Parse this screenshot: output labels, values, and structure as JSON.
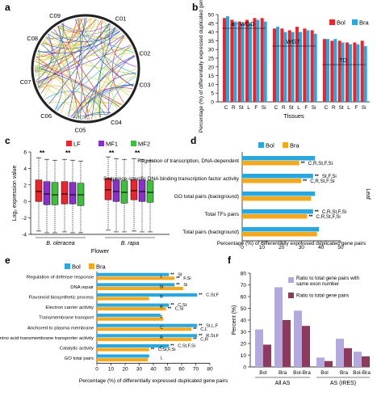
{
  "figure": {
    "panels": [
      {
        "id": "a",
        "letter": "a"
      },
      {
        "id": "b",
        "letter": "b"
      },
      {
        "id": "c",
        "letter": "c"
      },
      {
        "id": "d",
        "letter": "d"
      },
      {
        "id": "e",
        "letter": "e"
      },
      {
        "id": "f",
        "letter": "f"
      }
    ]
  },
  "colors": {
    "bol_red": "#e8262d",
    "bra_blue": "#29a8e0",
    "orange": "#f6a81c",
    "lf_red": "#e8262d",
    "mf1_purple": "#8b2fc9",
    "mf2_green": "#3fbf3f",
    "f_light": "#b3a9dc",
    "f_dark": "#8c3a5e",
    "sig": "#000000"
  },
  "circos": {
    "chromosomes": [
      "C01",
      "C02",
      "C03",
      "C04",
      "C05",
      "C06",
      "C07",
      "C08",
      "C09"
    ]
  },
  "chart_data": [
    {
      "id": "b",
      "type": "bar",
      "categories": [
        "C",
        "R",
        "St",
        "L",
        "F",
        "Si",
        "C",
        "R",
        "St",
        "L",
        "F",
        "Si",
        "C",
        "R",
        "St",
        "L",
        "F",
        "Si"
      ],
      "groups": [
        {
          "label": "a - WGD",
          "categories": [
            "C",
            "R",
            "St",
            "L",
            "F",
            "Si"
          ]
        },
        {
          "label": "WGT",
          "categories": [
            "C",
            "R",
            "St",
            "L",
            "F",
            "Si"
          ]
        },
        {
          "label": "TD",
          "categories": [
            "C",
            "R",
            "St",
            "L",
            "F",
            "Si"
          ]
        }
      ],
      "series": [
        {
          "name": "Bol",
          "color": "#e8262d",
          "values": [
            48,
            47,
            46,
            47,
            48,
            48,
            42,
            42,
            41,
            43,
            42,
            41,
            36,
            35,
            35,
            34,
            34,
            35
          ]
        },
        {
          "name": "Bra",
          "color": "#29a8e0",
          "values": [
            49,
            46,
            45,
            45,
            47,
            46,
            43,
            40,
            40,
            40,
            41,
            39,
            36,
            36,
            34,
            33,
            33,
            32
          ]
        }
      ],
      "xlabel": "Tissues",
      "ylabel": "Percentage (%) of differentially expressed duplicated gene pairs",
      "ylim": [
        0,
        50
      ],
      "yticks": [
        0,
        5,
        10,
        15,
        20,
        25,
        30,
        35,
        40,
        45,
        50
      ],
      "legend": "top-right"
    },
    {
      "id": "c",
      "type": "box",
      "series": [
        {
          "name": "LF",
          "color": "#e8262d"
        },
        {
          "name": "MF1",
          "color": "#8b2fc9"
        },
        {
          "name": "MF2",
          "color": "#3fbf3f"
        }
      ],
      "boxes": [
        {
          "q1": 0.0,
          "med": 1.2,
          "q3": 2.6,
          "lo": -3.6,
          "hi": 5.3
        },
        {
          "q1": -0.4,
          "med": 0.9,
          "q3": 2.4,
          "lo": -3.8,
          "hi": 5.1
        },
        {
          "q1": -0.4,
          "med": 0.8,
          "q3": 2.3,
          "lo": -3.8,
          "hi": 5.0
        },
        {
          "q1": -0.3,
          "med": 0.9,
          "q3": 2.4,
          "lo": -3.7,
          "hi": 5.1
        },
        {
          "q1": -0.3,
          "med": 0.8,
          "q3": 2.3,
          "lo": -3.8,
          "hi": 5.0
        },
        {
          "q1": -0.5,
          "med": 0.8,
          "q3": 2.2,
          "lo": -3.8,
          "hi": 4.9
        },
        {
          "q1": 0.2,
          "med": 1.4,
          "q3": 2.8,
          "lo": -3.5,
          "hi": 5.4
        },
        {
          "q1": 0.0,
          "med": 1.2,
          "q3": 2.6,
          "lo": -3.7,
          "hi": 5.2
        },
        {
          "q1": -0.2,
          "med": 1.1,
          "q3": 2.5,
          "lo": -3.7,
          "hi": 5.1
        },
        {
          "q1": 0.2,
          "med": 1.3,
          "q3": 2.6,
          "lo": -3.6,
          "hi": 5.2
        },
        {
          "q1": 0.0,
          "med": 1.2,
          "q3": 2.6,
          "lo": -3.7,
          "hi": 5.1
        },
        {
          "q1": -0.1,
          "med": 1.1,
          "q3": 2.5,
          "lo": -3.7,
          "hi": 5.0
        }
      ],
      "sig": [
        {
          "after_box": 0,
          "label": "**"
        },
        {
          "after_box": 3,
          "label": "**"
        },
        {
          "after_box": 6,
          "label": "**"
        },
        {
          "after_box": 9,
          "label": "**"
        }
      ],
      "groups": [
        {
          "label": "B. oleracea",
          "start": 0,
          "end": 5
        },
        {
          "label": "B. rapa",
          "start": 6,
          "end": 11
        }
      ],
      "xlabel": "Flower",
      "ylabel": "Log₂ expression value",
      "ylim": [
        -4,
        6
      ],
      "yticks": [
        -4,
        -2,
        0,
        2,
        4,
        6
      ],
      "legend": "top"
    },
    {
      "id": "d",
      "type": "bar",
      "orientation": "horizontal",
      "categories": [
        "Regulation of transcription, DNA-dependent",
        "Sequence-specific DNA binding transcription factor activity",
        "GO total pairs (background)",
        "Total TFs pairs",
        "Total pairs (background)"
      ],
      "series": [
        {
          "name": "Bol",
          "color": "#29a8e0",
          "values": [
            37,
            36,
            37,
            36,
            39
          ]
        },
        {
          "name": "Bra",
          "color": "#f6a81c",
          "values": [
            29,
            30,
            35,
            33,
            38
          ]
        }
      ],
      "annotations": [
        [
          "",
          "C,R,St,F,Si"
        ],
        [
          "St,F,Si",
          "C,R,St,F,Si"
        ],
        [
          "",
          ""
        ],
        [
          "C,R,St,F,Si",
          "C,R,St,F,Si"
        ],
        [
          "",
          ""
        ]
      ],
      "sig_label": "**",
      "side_label": "Leaf",
      "xlabel": "Percentage (%) of differentially expressed duplicated gene pairs",
      "xlim": [
        0,
        50
      ],
      "xticks": [
        0,
        10,
        20,
        30,
        40,
        50
      ],
      "legend": "top-left"
    },
    {
      "id": "e",
      "type": "bar",
      "orientation": "horizontal",
      "categories": [
        "Regulation of defense response",
        "DNA repair",
        "Flavonoid biosynthetic process",
        "Electron carrier activity",
        "Transmembrane transport",
        "Anchored to plasma membrane",
        "Amino acid transmembrane transporter activity",
        "Catalytic activity",
        "GO total pairs"
      ],
      "letters": [
        "L",
        "St",
        "R",
        "R",
        "F",
        "C",
        "R",
        "C",
        "L"
      ],
      "series": [
        {
          "name": "Bol",
          "color": "#29a8e0",
          "values": [
            51,
            55,
            71,
            51,
            45,
            71,
            71,
            51,
            37
          ]
        },
        {
          "name": "Bra",
          "color": "#f6a81c",
          "values": [
            55,
            61,
            37,
            49,
            47,
            67,
            67,
            37,
            36
          ]
        }
      ],
      "annotations": [
        [
          "St",
          "F,Si"
        ],
        [
          "Si",
          ""
        ],
        [
          "C,St,F",
          ""
        ],
        [
          "C,St",
          "C,Si"
        ],
        [
          "",
          ""
        ],
        [
          "St,L,F",
          "C,L"
        ],
        [
          "R,St,F",
          "C,R"
        ],
        [
          "C,St,F,Si",
          "C,St,F,Si"
        ],
        [
          "",
          ""
        ]
      ],
      "sig_label": "**",
      "xlabel": "Percentage (%) of differentially expressed duplicated gene pairs",
      "xlim": [
        0,
        80
      ],
      "xticks": [
        0,
        10,
        20,
        30,
        40,
        50,
        60,
        70,
        80
      ],
      "legend": "top"
    },
    {
      "id": "f",
      "type": "bar",
      "categories": [
        "Bol",
        "Bra",
        "Bol-Bra",
        "Bol",
        "Bra",
        "Bol-Bra"
      ],
      "groups": [
        {
          "label": "All AS",
          "start": 0,
          "end": 2
        },
        {
          "label": "AS (IRES)",
          "start": 3,
          "end": 5
        }
      ],
      "series": [
        {
          "name": "Ratio to total gene pairs with same exon number",
          "color": "#b3a9dc",
          "values": [
            32,
            68,
            48,
            8,
            24,
            13
          ]
        },
        {
          "name": "Ratio to total gene pairs",
          "color": "#8c3a5e",
          "values": [
            19,
            40,
            35,
            5,
            16,
            9
          ]
        }
      ],
      "ylabel": "Percent (%)",
      "ylim": [
        0,
        80
      ],
      "yticks": [
        0,
        10,
        20,
        30,
        40,
        50,
        60,
        70,
        80
      ],
      "legend": "top-right"
    }
  ]
}
